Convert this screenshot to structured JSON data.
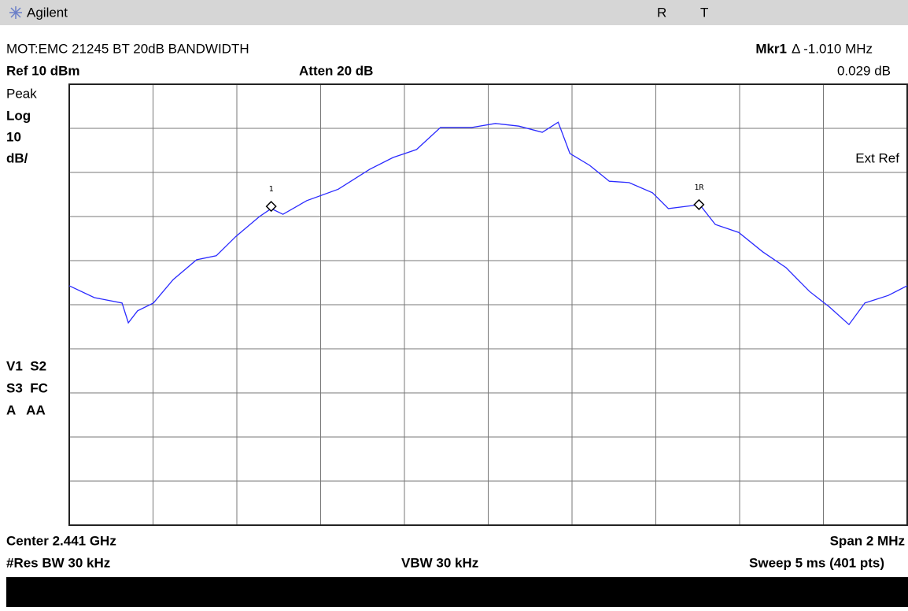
{
  "header": {
    "brand": "Agilent",
    "flags": [
      "R",
      "T"
    ]
  },
  "info": {
    "title": "MOT:EMC 21245 BT 20dB BANDWIDTH",
    "marker_name": "Mkr1",
    "marker_delta": "Δ -1.010 MHz",
    "ref": "Ref 10 dBm",
    "atten": "Atten 20 dB",
    "marker_level": "0.029 dB"
  },
  "left_panel": {
    "detector": "Peak",
    "scale_type": "Log",
    "scale_value": "10",
    "scale_unit": "dB/",
    "status": [
      "V1  S2",
      "S3  FC",
      "A   AA"
    ]
  },
  "right_panel": {
    "ext_ref": "Ext Ref"
  },
  "footer": {
    "center": "Center 2.441 GHz",
    "span": "Span 2 MHz",
    "rbw": "#Res BW 30 kHz",
    "vbw": "VBW 30 kHz",
    "sweep": "Sweep 5 ms (401 pts)"
  },
  "chart_data": {
    "type": "line",
    "color": "#2a2aff",
    "grid": true,
    "xlim": [
      2.44,
      2.442
    ],
    "ylim": [
      -90,
      10
    ],
    "xticks": [
      2.44,
      2.4402,
      2.4404,
      2.4406,
      2.4408,
      2.441,
      2.4412,
      2.4414,
      2.4416,
      2.4418,
      2.442
    ],
    "yticks": [
      -90,
      -80,
      -70,
      -60,
      -50,
      -40,
      -30,
      -20,
      -10,
      0,
      10
    ],
    "x": [
      2.44,
      2.44006,
      2.440126,
      2.440141,
      2.440163,
      2.440201,
      2.440248,
      2.440304,
      2.440351,
      2.440398,
      2.440454,
      2.440482,
      2.44051,
      2.440567,
      2.440642,
      2.440717,
      2.440773,
      2.440829,
      2.440886,
      2.440961,
      2.441017,
      2.441073,
      2.441129,
      2.441167,
      2.441195,
      2.441242,
      2.441289,
      2.441336,
      2.441392,
      2.44143,
      2.441505,
      2.441542,
      2.441598,
      2.441655,
      2.441711,
      2.441767,
      2.441814,
      2.441861,
      2.441899,
      2.441955,
      2.442
    ],
    "values": [
      -35.7,
      -38.4,
      -39.6,
      -44.1,
      -41.4,
      -39.6,
      -34.3,
      -29.8,
      -28.9,
      -24.5,
      -20,
      -18.2,
      -19.5,
      -16.4,
      -13.8,
      -9.3,
      -6.6,
      -4.8,
      0.2,
      0.2,
      1.1,
      0.5,
      -0.9,
      1.4,
      -5.7,
      -8.4,
      -12,
      -12.3,
      -14.6,
      -18.2,
      -17.3,
      -21.8,
      -23.6,
      -28,
      -31.6,
      -37,
      -40.5,
      -44.5,
      -39.6,
      -37.9,
      -35.7
    ],
    "markers": [
      {
        "label": "1",
        "x": 2.440482,
        "value": -17.7
      },
      {
        "label": "1R",
        "x": 2.441503,
        "value": -17.3
      }
    ]
  }
}
